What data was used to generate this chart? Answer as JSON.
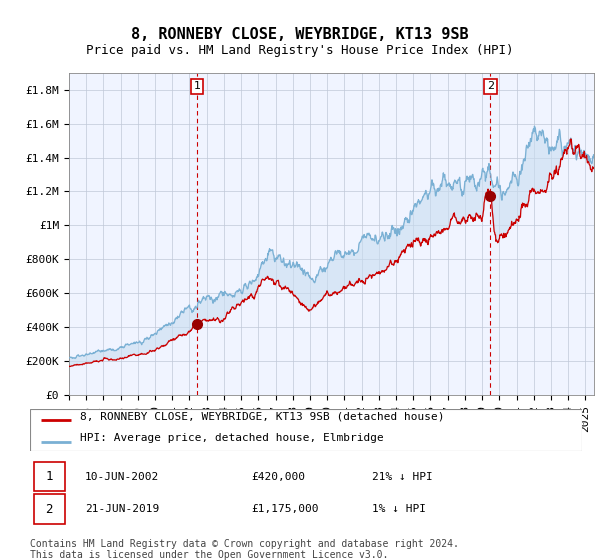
{
  "title": "8, RONNEBY CLOSE, WEYBRIDGE, KT13 9SB",
  "subtitle": "Price paid vs. HM Land Registry's House Price Index (HPI)",
  "ylabel_ticks": [
    "£0",
    "£200K",
    "£400K",
    "£600K",
    "£800K",
    "£1M",
    "£1.2M",
    "£1.4M",
    "£1.6M",
    "£1.8M"
  ],
  "ytick_values": [
    0,
    200000,
    400000,
    600000,
    800000,
    1000000,
    1200000,
    1400000,
    1600000,
    1800000
  ],
  "ylim": [
    0,
    1900000
  ],
  "xlim_start": 1995.0,
  "xlim_end": 2025.5,
  "sale1_date": 2002.44,
  "sale1_price": 420000,
  "sale2_date": 2019.47,
  "sale2_price": 1175000,
  "red_line_color": "#cc0000",
  "blue_line_color": "#7ab0d4",
  "fill_color": "#ddeeff",
  "sale_dot_color": "#990000",
  "dashed_line_color": "#cc0000",
  "legend_entry1": "8, RONNEBY CLOSE, WEYBRIDGE, KT13 9SB (detached house)",
  "legend_entry2": "HPI: Average price, detached house, Elmbridge",
  "footnote": "Contains HM Land Registry data © Crown copyright and database right 2024.\nThis data is licensed under the Open Government Licence v3.0.",
  "background_color": "#ffffff",
  "plot_bg_color": "#f0f4ff",
  "grid_color": "#c0c8d8",
  "title_fontsize": 11,
  "subtitle_fontsize": 9,
  "tick_fontsize": 8,
  "legend_fontsize": 8,
  "table_fontsize": 8,
  "footnote_fontsize": 7
}
